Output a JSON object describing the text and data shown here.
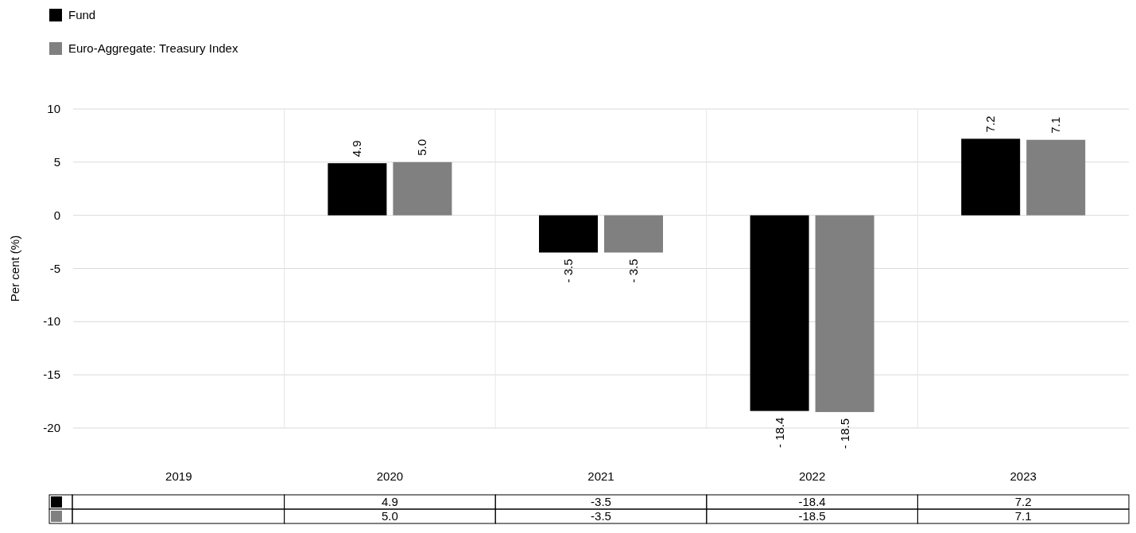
{
  "chart_data": {
    "type": "bar",
    "categories": [
      "2019",
      "2020",
      "2021",
      "2022",
      "2023"
    ],
    "ylabel": "Per cent (%)",
    "ylim": [
      -20,
      10
    ],
    "yticks": [
      -20,
      -15,
      -10,
      -5,
      0,
      5,
      10
    ],
    "grid": true,
    "legend": "top left",
    "data_labels": true,
    "annotations": [
      "4.9",
      "-3.5",
      "-18.4",
      "7.2",
      "5.0",
      "-3.5",
      "-18.5",
      "7.1"
    ],
    "series": [
      {
        "name": "Fund",
        "color": "#000000",
        "values": [
          null,
          4.9,
          -3.5,
          -18.4,
          7.2
        ],
        "value_labels": [
          null,
          "4.9",
          "- 3.5",
          "- 18.4",
          "7.2"
        ]
      },
      {
        "name": "Euro-Aggregate: Treasury Index",
        "color": "#808080",
        "values": [
          null,
          5.0,
          -3.5,
          -18.5,
          7.1
        ],
        "value_labels": [
          null,
          "5.0",
          "- 3.5",
          "- 18.5",
          "7.1"
        ]
      }
    ]
  }
}
